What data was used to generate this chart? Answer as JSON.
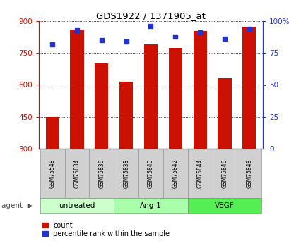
{
  "title": "GDS1922 / 1371905_at",
  "samples": [
    "GSM75548",
    "GSM75834",
    "GSM75836",
    "GSM75838",
    "GSM75840",
    "GSM75842",
    "GSM75844",
    "GSM75846",
    "GSM75848"
  ],
  "counts": [
    450,
    860,
    700,
    615,
    790,
    775,
    855,
    630,
    875
  ],
  "percentiles": [
    82,
    93,
    85,
    84,
    96,
    88,
    91,
    86,
    94
  ],
  "groups": [
    {
      "label": "untreated",
      "indices": [
        0,
        1,
        2
      ],
      "color": "#ccffcc"
    },
    {
      "label": "Ang-1",
      "indices": [
        3,
        4,
        5
      ],
      "color": "#aaffaa"
    },
    {
      "label": "VEGF",
      "indices": [
        6,
        7,
        8
      ],
      "color": "#55ee55"
    }
  ],
  "ymin": 300,
  "ymax": 900,
  "yticks": [
    300,
    450,
    600,
    750,
    900
  ],
  "y2ticks": [
    0,
    25,
    50,
    75,
    100
  ],
  "bar_color": "#cc1100",
  "dot_color": "#2233cc",
  "bar_width": 0.55,
  "legend_count_label": "count",
  "legend_pct_label": "percentile rank within the sample"
}
